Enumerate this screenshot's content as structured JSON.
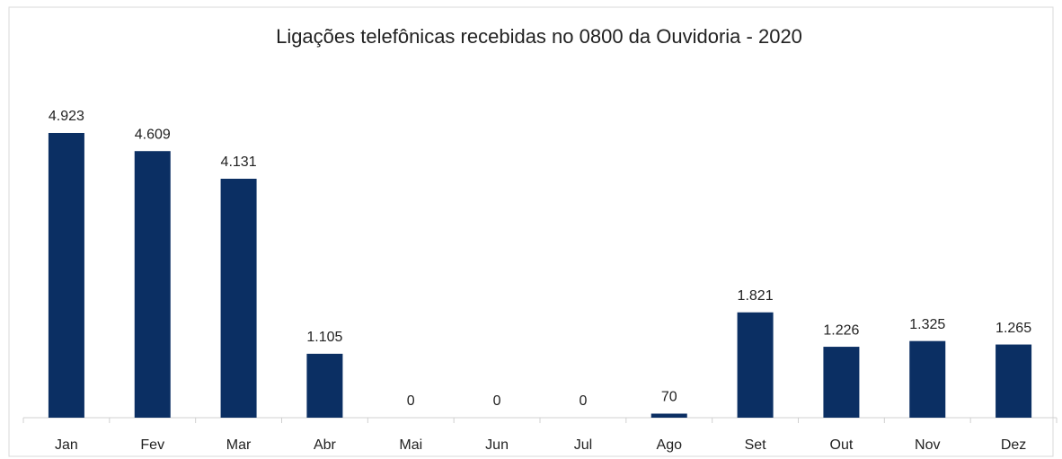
{
  "chart_data": {
    "type": "bar",
    "title": "Ligações telefônicas recebidas no 0800 da Ouvidoria - 2020",
    "categories": [
      "Jan",
      "Fev",
      "Mar",
      "Abr",
      "Mai",
      "Jun",
      "Jul",
      "Ago",
      "Set",
      "Out",
      "Nov",
      "Dez"
    ],
    "values": [
      4923,
      4609,
      4131,
      1105,
      0,
      0,
      0,
      70,
      1821,
      1226,
      1325,
      1265
    ],
    "value_labels": [
      "4.923",
      "4.609",
      "4.131",
      "1.105",
      "0",
      "0",
      "0",
      "70",
      "1.821",
      "1.226",
      "1.325",
      "1.265"
    ],
    "color": "#0b2f63"
  }
}
